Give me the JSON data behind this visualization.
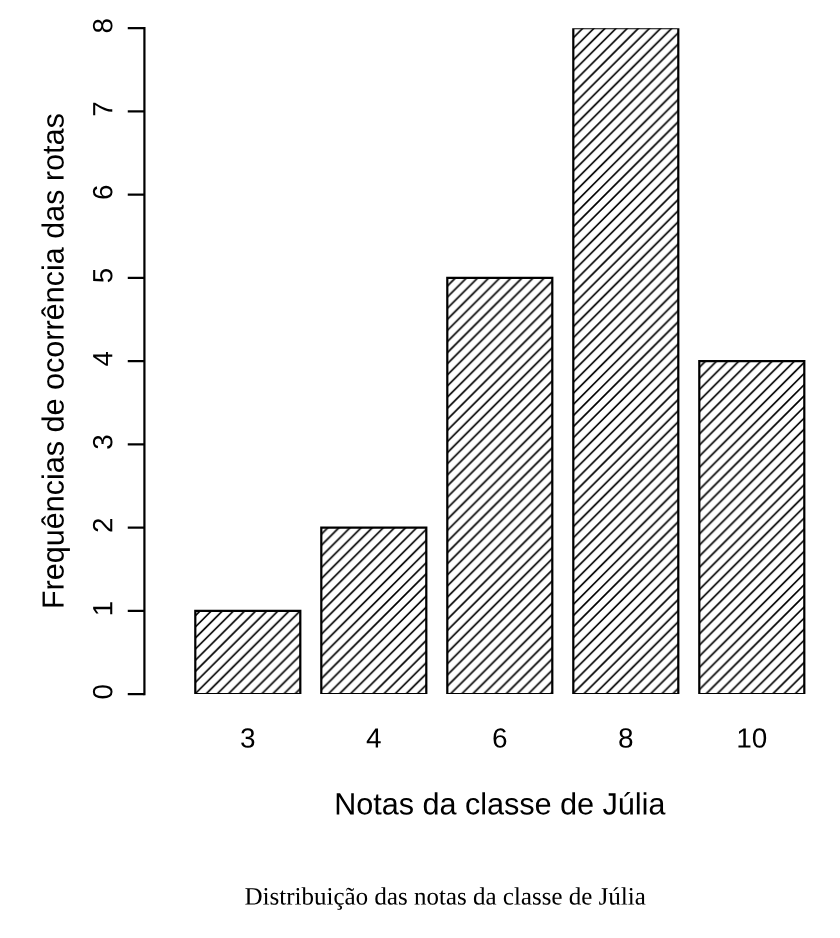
{
  "chart_data": {
    "type": "bar",
    "categories": [
      "3",
      "4",
      "6",
      "8",
      "10"
    ],
    "values": [
      1,
      2,
      5,
      8,
      4
    ],
    "color": "#000000",
    "xlabel": "Notas da classe de Júlia",
    "ylabel": "Frequências de ocorrência das rotas",
    "ylim": [
      0,
      8
    ],
    "yticks": [
      0,
      1,
      2,
      3,
      4,
      5,
      6,
      7,
      8
    ],
    "grid": false,
    "legend": false,
    "annotations": [
      "Distribuição das notas da classe de Júlia"
    ]
  }
}
